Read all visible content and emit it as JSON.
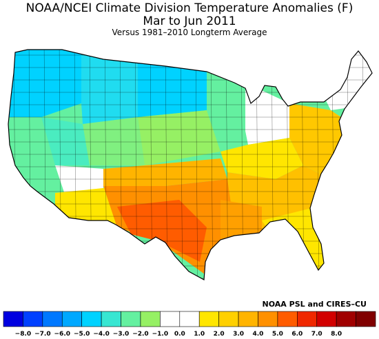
{
  "header": {
    "title": "NOAA/NCEI Climate Division Temperature Anomalies (F)",
    "period": "Mar to Jun 2011",
    "baseline": "Versus 1981–2010 Longterm Average"
  },
  "credit": "NOAA PSL and CIRES–CU",
  "legend": {
    "bins": [
      "#0000e0",
      "#0040ff",
      "#0078ff",
      "#00a8ff",
      "#00d2ff",
      "#38e6d2",
      "#64f0a0",
      "#96f064",
      "#ffffff",
      "#ffffff",
      "#ffe600",
      "#ffd000",
      "#ffb400",
      "#ff9000",
      "#ff5c00",
      "#f02800",
      "#d20000",
      "#a00000",
      "#800000"
    ],
    "tick_labels": [
      "−8.0",
      "−7.0",
      "−6.0",
      "−5.0",
      "−4.0",
      "−3.0",
      "−2.0",
      "−1.0",
      "0.0",
      "1.0",
      "2.0",
      "3.0",
      "4.0",
      "5.0",
      "6.0",
      "7.0",
      "8.0"
    ]
  },
  "regions": [
    {
      "name": "pacific-northwest",
      "anomaly": -4.0,
      "color": "#00d2ff"
    },
    {
      "name": "northern-rockies",
      "anomaly": -3.5,
      "color": "#20dcf0"
    },
    {
      "name": "northern-plains",
      "anomaly": -4.0,
      "color": "#00d2ff"
    },
    {
      "name": "california-coast",
      "anomaly": -2.0,
      "color": "#64f0a0"
    },
    {
      "name": "great-basin",
      "anomaly": -2.5,
      "color": "#4aecc0"
    },
    {
      "name": "four-corners",
      "anomaly": -1.5,
      "color": "#80f080"
    },
    {
      "name": "central-plains",
      "anomaly": -1.5,
      "color": "#96f064"
    },
    {
      "name": "upper-midwest",
      "anomaly": -2.0,
      "color": "#64f0a0"
    },
    {
      "name": "great-lakes",
      "anomaly": 0.0,
      "color": "#ffffff"
    },
    {
      "name": "new-england",
      "anomaly": 0.5,
      "color": "#ffffff"
    },
    {
      "name": "ohio-valley",
      "anomaly": 1.5,
      "color": "#ffe600"
    },
    {
      "name": "mid-atlantic",
      "anomaly": 2.5,
      "color": "#ffc800"
    },
    {
      "name": "southeast",
      "anomaly": 2.5,
      "color": "#ffc000"
    },
    {
      "name": "florida",
      "anomaly": 1.5,
      "color": "#ffe600"
    },
    {
      "name": "arizona",
      "anomaly": 0.5,
      "color": "#ffffff"
    },
    {
      "name": "southern-arizona",
      "anomaly": 1.5,
      "color": "#ffe600"
    },
    {
      "name": "oklahoma",
      "anomaly": 3.0,
      "color": "#ffb400"
    },
    {
      "name": "texas",
      "anomaly": 4.0,
      "color": "#ff9000"
    },
    {
      "name": "west-texas",
      "anomaly": 5.5,
      "color": "#ff5c00"
    },
    {
      "name": "gulf-coast",
      "anomaly": 3.5,
      "color": "#ffa000"
    }
  ]
}
